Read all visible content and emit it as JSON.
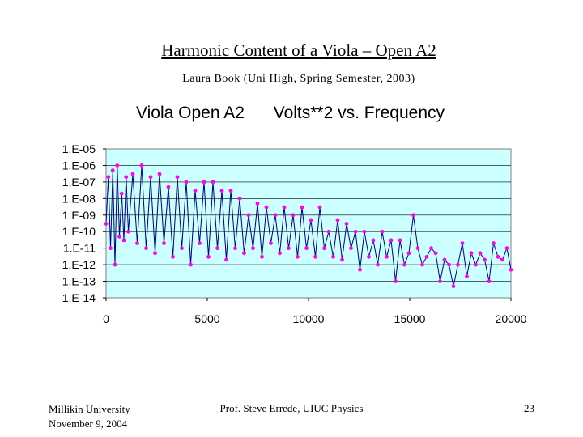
{
  "slide": {
    "title": "Harmonic Content of a Viola – Open A2",
    "subtitle": "Laura Book (Uni High, Spring Semester, 2003)"
  },
  "footer": {
    "institution": "Millikin University",
    "date": "November 9, 2004",
    "presenter": "Prof. Steve Errede, UIUC Physics",
    "page_number": "23"
  },
  "colors": {
    "plot_background": "#ccffff",
    "line": "#000080",
    "marker": "#ff00ff"
  },
  "chart_data": {
    "type": "scatter",
    "title_left": "Viola Open A2",
    "title_right": "Volts**2 vs. Frequency",
    "x_ticks": [
      "0",
      "5000",
      "10000",
      "15000",
      "20000"
    ],
    "y_ticks": [
      "1.E-05",
      "1.E-06",
      "1.E-07",
      "1.E-08",
      "1.E-09",
      "1.E-10",
      "1.E-11",
      "1.E-12",
      "1.E-13",
      "1.E-14"
    ],
    "xlim": [
      0,
      20000
    ],
    "ylim": [
      1e-14,
      1e-05
    ],
    "yscale": "log",
    "grid": "horizontal",
    "legend": "none",
    "series": [
      {
        "x": [
          0,
          110,
          220,
          330,
          440,
          550,
          660,
          770,
          880,
          990,
          1100,
          1320,
          1540,
          1760,
          1980,
          2200,
          2420,
          2640,
          2860,
          3080,
          3300,
          3520,
          3740,
          3960,
          4180,
          4400,
          4620,
          4840,
          5060,
          5280,
          5500,
          5720,
          5940,
          6160,
          6380,
          6600,
          6820,
          7040,
          7260,
          7480,
          7700,
          7920,
          8140,
          8360,
          8580,
          8800,
          9020,
          9240,
          9460,
          9680,
          9900,
          10120,
          10340,
          10560,
          10780,
          11000,
          11220,
          11440,
          11660,
          11880,
          12100,
          12320,
          12540,
          12760,
          12980,
          13200,
          13420,
          13640,
          13860,
          14080,
          14300,
          14520,
          14740,
          14960,
          15180,
          15400,
          15620,
          15840,
          16060,
          16280,
          16500,
          16720,
          16940,
          17160,
          17380,
          17600,
          17820,
          18040,
          18260,
          18480,
          18700,
          18920,
          19140,
          19360,
          19580,
          19800,
          20000
        ],
        "y": [
          3e-10,
          2e-07,
          1e-11,
          5e-07,
          1e-12,
          1e-06,
          5e-11,
          2e-08,
          3e-11,
          2e-07,
          1e-10,
          3e-07,
          2e-11,
          1e-06,
          1e-11,
          2e-07,
          5e-12,
          3e-07,
          2e-11,
          5e-08,
          3e-12,
          2e-07,
          1e-11,
          1e-07,
          1e-12,
          3e-08,
          2e-11,
          1e-07,
          3e-12,
          1e-07,
          1e-11,
          3e-08,
          2e-12,
          3e-08,
          1e-11,
          1e-08,
          5e-12,
          1e-09,
          1e-11,
          5e-09,
          3e-12,
          3e-09,
          2e-11,
          1e-09,
          5e-12,
          3e-09,
          1e-11,
          1e-09,
          3e-12,
          3e-09,
          1e-11,
          5e-10,
          3e-12,
          3e-09,
          1e-11,
          1e-10,
          3e-12,
          5e-10,
          2e-12,
          3e-10,
          1e-11,
          1e-10,
          5e-13,
          1e-10,
          3e-12,
          3e-11,
          1e-12,
          1e-10,
          3e-12,
          3e-11,
          1e-13,
          3e-11,
          1e-12,
          5e-12,
          1e-09,
          1e-11,
          1e-12,
          3e-12,
          1e-11,
          5e-12,
          1e-13,
          2e-12,
          1e-12,
          5e-14,
          1e-12,
          2e-11,
          2e-13,
          5e-12,
          1e-12,
          5e-12,
          2e-12,
          1e-13,
          2e-11,
          3e-12,
          2e-12,
          1e-11,
          5e-13
        ]
      }
    ]
  }
}
